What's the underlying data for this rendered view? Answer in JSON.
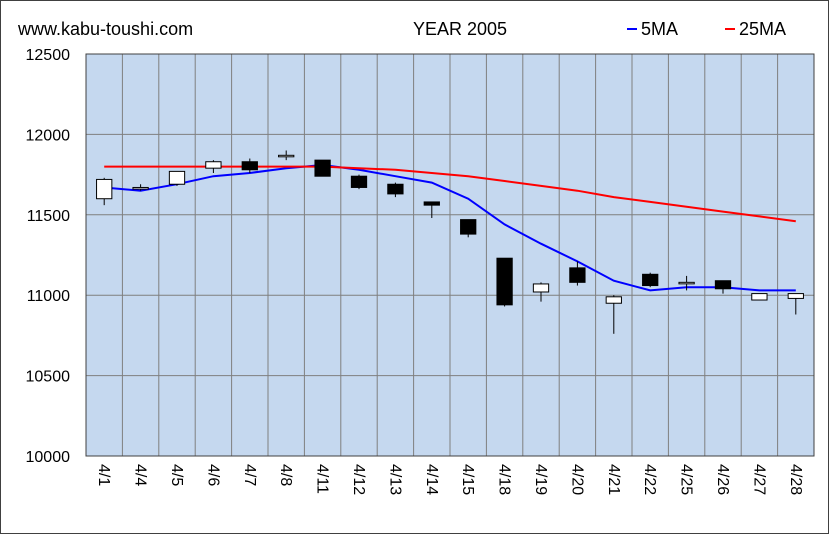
{
  "site": "www.kabu-toushi.com",
  "title": "YEAR 2005",
  "legend": [
    {
      "label": "5MA",
      "color": "#0000ff"
    },
    {
      "label": "25MA",
      "color": "#ff0000"
    }
  ],
  "colors": {
    "plot_bg": "#c5d8ef",
    "grid": "#7f7f7f",
    "up_fill": "#ffffff",
    "down_fill": "#000000"
  },
  "chart_data": {
    "type": "candlestick",
    "ylim": [
      10000,
      12500
    ],
    "yticks": [
      10000,
      10500,
      11000,
      11500,
      12000,
      12500
    ],
    "grid": true,
    "legend_position": "top-right",
    "categories": [
      "4/1",
      "4/4",
      "4/5",
      "4/6",
      "4/7",
      "4/8",
      "4/11",
      "4/12",
      "4/13",
      "4/14",
      "4/15",
      "4/18",
      "4/19",
      "4/20",
      "4/21",
      "4/22",
      "4/25",
      "4/26",
      "4/27",
      "4/28"
    ],
    "candles": [
      {
        "open": 11600,
        "high": 11730,
        "low": 11560,
        "close": 11720
      },
      {
        "open": 11660,
        "high": 11690,
        "low": 11650,
        "close": 11670
      },
      {
        "open": 11690,
        "high": 11770,
        "low": 11680,
        "close": 11770
      },
      {
        "open": 11790,
        "high": 11840,
        "low": 11760,
        "close": 11830
      },
      {
        "open": 11830,
        "high": 11850,
        "low": 11760,
        "close": 11780
      },
      {
        "open": 11870,
        "high": 11900,
        "low": 11840,
        "close": 11870
      },
      {
        "open": 11840,
        "high": 11840,
        "low": 11740,
        "close": 11740
      },
      {
        "open": 11740,
        "high": 11750,
        "low": 11660,
        "close": 11670
      },
      {
        "open": 11690,
        "high": 11700,
        "low": 11610,
        "close": 11630
      },
      {
        "open": 11580,
        "high": 11580,
        "low": 11480,
        "close": 11560
      },
      {
        "open": 11470,
        "high": 11470,
        "low": 11360,
        "close": 11380
      },
      {
        "open": 11230,
        "high": 11230,
        "low": 10930,
        "close": 10940
      },
      {
        "open": 11020,
        "high": 11080,
        "low": 10960,
        "close": 11070
      },
      {
        "open": 11170,
        "high": 11210,
        "low": 11060,
        "close": 11080
      },
      {
        "open": 10950,
        "high": 11000,
        "low": 10760,
        "close": 10990
      },
      {
        "open": 11130,
        "high": 11140,
        "low": 11050,
        "close": 11060
      },
      {
        "open": 11080,
        "high": 11120,
        "low": 11030,
        "close": 11080
      },
      {
        "open": 11090,
        "high": 11090,
        "low": 11010,
        "close": 11040
      },
      {
        "open": 10970,
        "high": 11010,
        "low": 10970,
        "close": 11010
      },
      {
        "open": 10980,
        "high": 11010,
        "low": 10880,
        "close": 11010
      }
    ],
    "series": [
      {
        "name": "5MA",
        "color": "#0000ff",
        "values": [
          11670,
          11650,
          11690,
          11740,
          11760,
          11790,
          11810,
          11780,
          11740,
          11700,
          11600,
          11440,
          11320,
          11210,
          11090,
          11030,
          11050,
          11050,
          11030,
          11030
        ]
      },
      {
        "name": "25MA",
        "color": "#ff0000",
        "values": [
          11800,
          11800,
          11800,
          11800,
          11800,
          11800,
          11800,
          11790,
          11780,
          11760,
          11740,
          11710,
          11680,
          11650,
          11610,
          11580,
          11550,
          11520,
          11490,
          11460
        ]
      }
    ]
  }
}
